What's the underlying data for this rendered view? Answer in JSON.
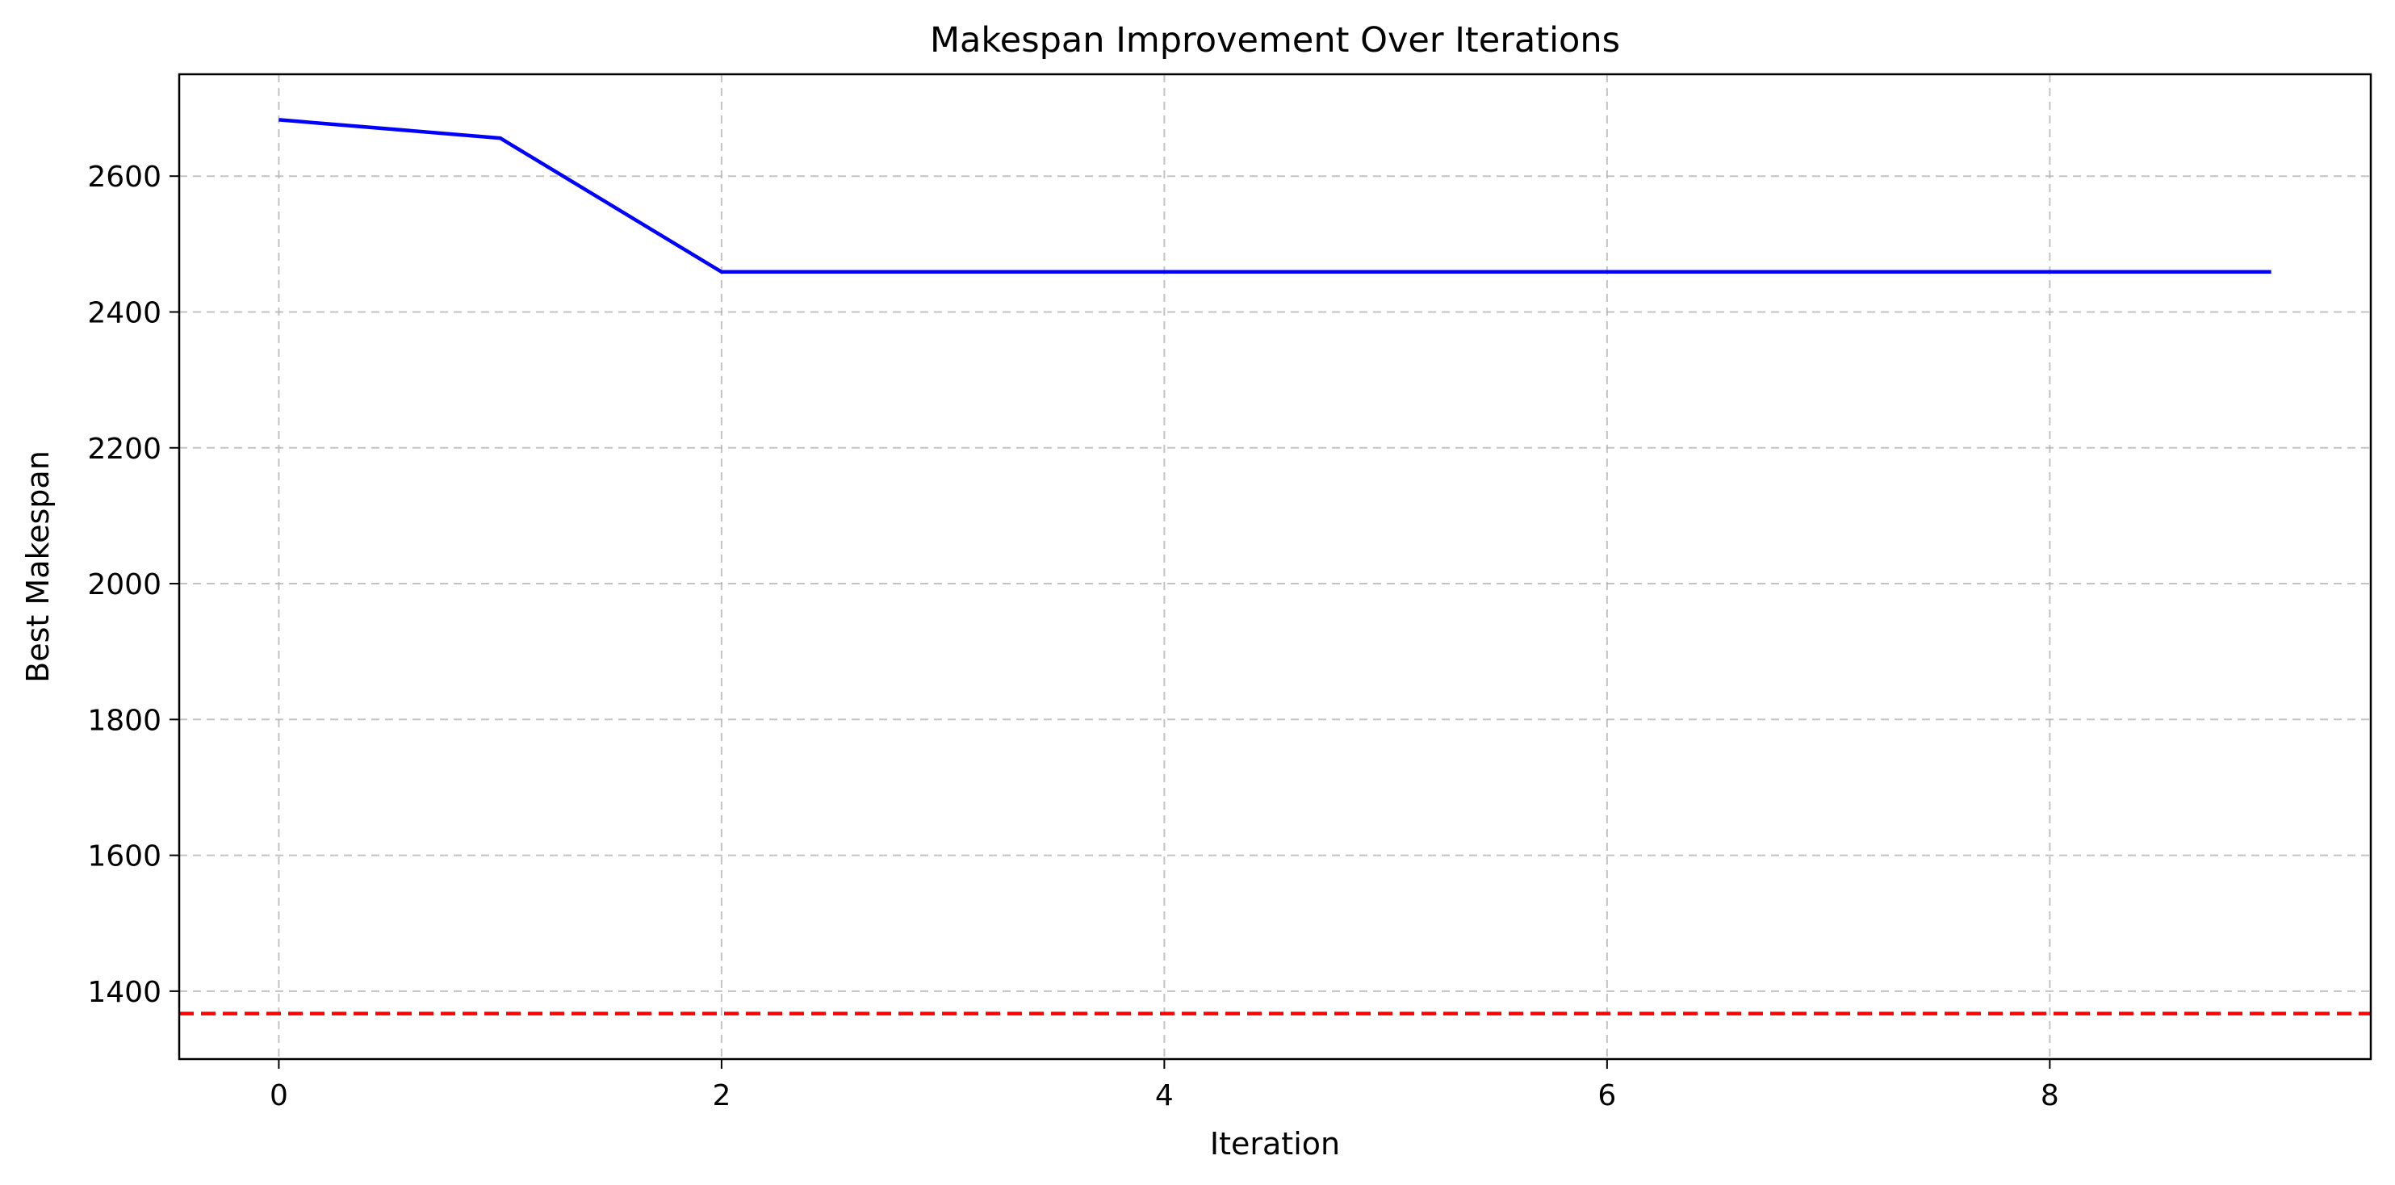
{
  "chart_data": {
    "type": "line",
    "title": "Makespan Improvement Over Iterations",
    "xlabel": "Iteration",
    "ylabel": "Best Makespan",
    "xlim": [
      -0.45,
      9.45
    ],
    "ylim": [
      1300,
      2750
    ],
    "xticks": [
      0,
      2,
      4,
      6,
      8
    ],
    "xtick_labels": [
      "0",
      "2",
      "4",
      "6",
      "8"
    ],
    "yticks": [
      1400,
      1600,
      1800,
      2000,
      2200,
      2400,
      2600
    ],
    "ytick_labels": [
      "1400",
      "1600",
      "1800",
      "2000",
      "2200",
      "2400",
      "2600"
    ],
    "grid": true,
    "series": [
      {
        "color": "#0000ff",
        "style": "solid",
        "x": [
          0,
          1,
          2,
          3,
          4,
          5,
          6,
          7,
          8,
          9
        ],
        "y": [
          2683,
          2656,
          2459,
          2459,
          2459,
          2459,
          2459,
          2459,
          2459,
          2459
        ]
      }
    ],
    "hlines": [
      {
        "y": 1367,
        "color": "#ff0000",
        "style": "dashed"
      }
    ]
  }
}
